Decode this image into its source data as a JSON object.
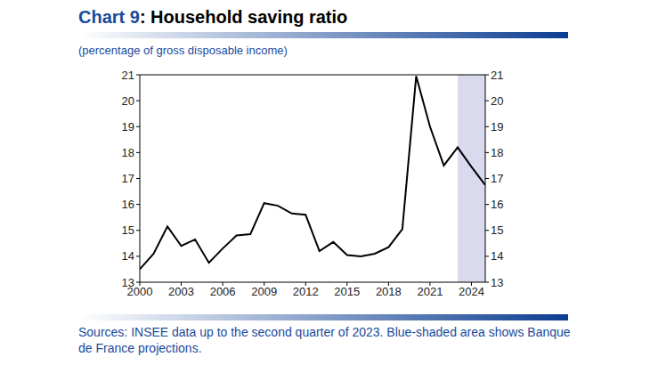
{
  "chart_data": {
    "type": "line",
    "title": "Chart 9: Household saving ratio",
    "subtitle": "(percentage of gross disposable income)",
    "source": "Sources: INSEE data up to the second quarter of 2023. Blue-shaded area shows Banque de France projections.",
    "x": [
      2000,
      2001,
      2002,
      2003,
      2004,
      2005,
      2006,
      2007,
      2008,
      2009,
      2010,
      2011,
      2012,
      2013,
      2014,
      2015,
      2016,
      2017,
      2018,
      2019,
      2020,
      2021,
      2022,
      2023,
      2024,
      2025
    ],
    "values": [
      13.5,
      14.1,
      15.15,
      14.4,
      14.65,
      13.75,
      14.3,
      14.8,
      14.85,
      16.05,
      15.95,
      15.65,
      15.6,
      14.2,
      14.55,
      14.05,
      14.0,
      14.1,
      14.35,
      15.05,
      20.95,
      19.0,
      17.5,
      18.2,
      17.45,
      16.75
    ],
    "color": "#000000",
    "projection_range": [
      2023,
      2025
    ],
    "xlim": [
      2000,
      2025
    ],
    "xticks": [
      2000,
      2003,
      2006,
      2009,
      2012,
      2015,
      2018,
      2021,
      2024
    ],
    "ylim": [
      13,
      21
    ],
    "yticks": [
      13,
      14,
      15,
      16,
      17,
      18,
      19,
      20,
      21
    ],
    "y2lim": [
      13,
      21
    ],
    "y2ticks": [
      13,
      14,
      15,
      16,
      17,
      18,
      19,
      20,
      21
    ],
    "grid": false
  }
}
